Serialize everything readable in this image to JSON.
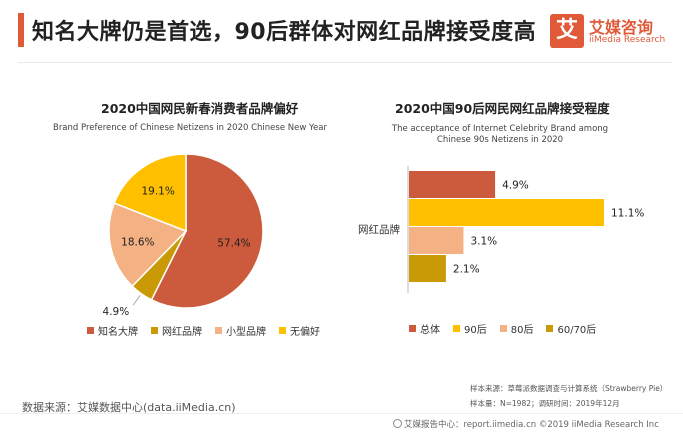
{
  "header": {
    "title": "知名大牌仍是首选，90后群体对网红品牌接受度高"
  },
  "logo": {
    "mark": "艾",
    "name": "艾媒咨询",
    "sub": "iiMedia Research"
  },
  "pie": {
    "title": "2020中国网民新春消费者品牌偏好",
    "subtitle": "Brand Preference of Chinese Netizens in 2020 Chinese New Year"
  },
  "bar": {
    "title": "2020中国90后网民网红品牌接受程度",
    "subtitle_line1": "The acceptance of Internet Celebrity Brand among",
    "subtitle_line2": "Chinese 90s Netizens in 2020"
  },
  "chart_data": [
    {
      "type": "pie",
      "title": "2020中国网民新春消费者品牌偏好",
      "subtitle": "Brand Preference of Chinese Netizens in 2020 Chinese New Year",
      "slices": [
        {
          "label": "知名大牌",
          "value": 57.4,
          "display": "57.4%",
          "color": "#cc5a3c"
        },
        {
          "label": "网红品牌",
          "value": 4.9,
          "display": "4.9%",
          "color": "#c99a06"
        },
        {
          "label": "小型品牌",
          "value": 18.6,
          "display": "18.6%",
          "color": "#f4b183"
        },
        {
          "label": "无偏好",
          "value": 19.1,
          "display": "19.1%",
          "color": "#ffc000"
        }
      ],
      "legend_position": "bottom"
    },
    {
      "type": "bar",
      "orientation": "horizontal",
      "title": "2020中国90后网民网红品牌接受程度",
      "subtitle": "The acceptance of Internet Celebrity Brand among Chinese 90s Netizens in 2020",
      "categories": [
        "网红品牌"
      ],
      "series": [
        {
          "name": "总体",
          "values": [
            4.9
          ],
          "display": "4.9%",
          "color": "#cc5a3c"
        },
        {
          "name": "90后",
          "values": [
            11.1
          ],
          "display": "11.1%",
          "color": "#ffc000"
        },
        {
          "name": "80后",
          "values": [
            3.1
          ],
          "display": "3.1%",
          "color": "#f4b183"
        },
        {
          "name": "60/70后",
          "values": [
            2.1
          ],
          "display": "2.1%",
          "color": "#c99a06"
        }
      ],
      "legend_position": "bottom"
    }
  ],
  "footer": {
    "source": "数据来源：艾媒数据中心(data.iiMedia.cn)",
    "sample_source": "样本来源：草莓派数据调查与计算系统（Strawberry Pie）",
    "sample_size": "样本量：N=1982；调研时间：2019年12月",
    "report": "艾媒报告中心：report.iimedia.cn  ©2019  iiMedia Research  Inc"
  }
}
